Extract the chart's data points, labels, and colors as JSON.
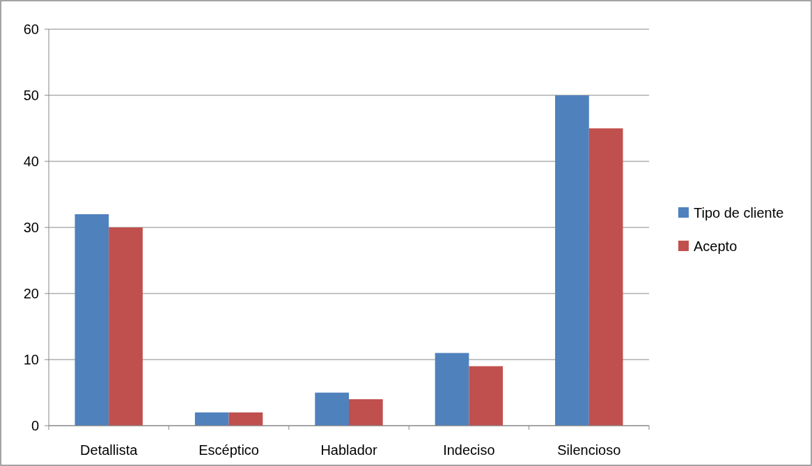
{
  "chart_data": {
    "type": "bar",
    "categories": [
      "Detallista",
      "Escéptico",
      "Hablador",
      "Indeciso",
      "Silencioso"
    ],
    "series": [
      {
        "name": "Tipo de cliente",
        "color": "#4f81bd",
        "values": [
          32,
          2,
          5,
          11,
          50
        ]
      },
      {
        "name": "Acepto",
        "color": "#c0504d",
        "values": [
          30,
          2,
          4,
          9,
          45
        ]
      }
    ],
    "ylim": [
      0,
      60
    ],
    "yticks": [
      0,
      10,
      20,
      30,
      40,
      50,
      60
    ],
    "grid": "y",
    "legend": "right"
  }
}
